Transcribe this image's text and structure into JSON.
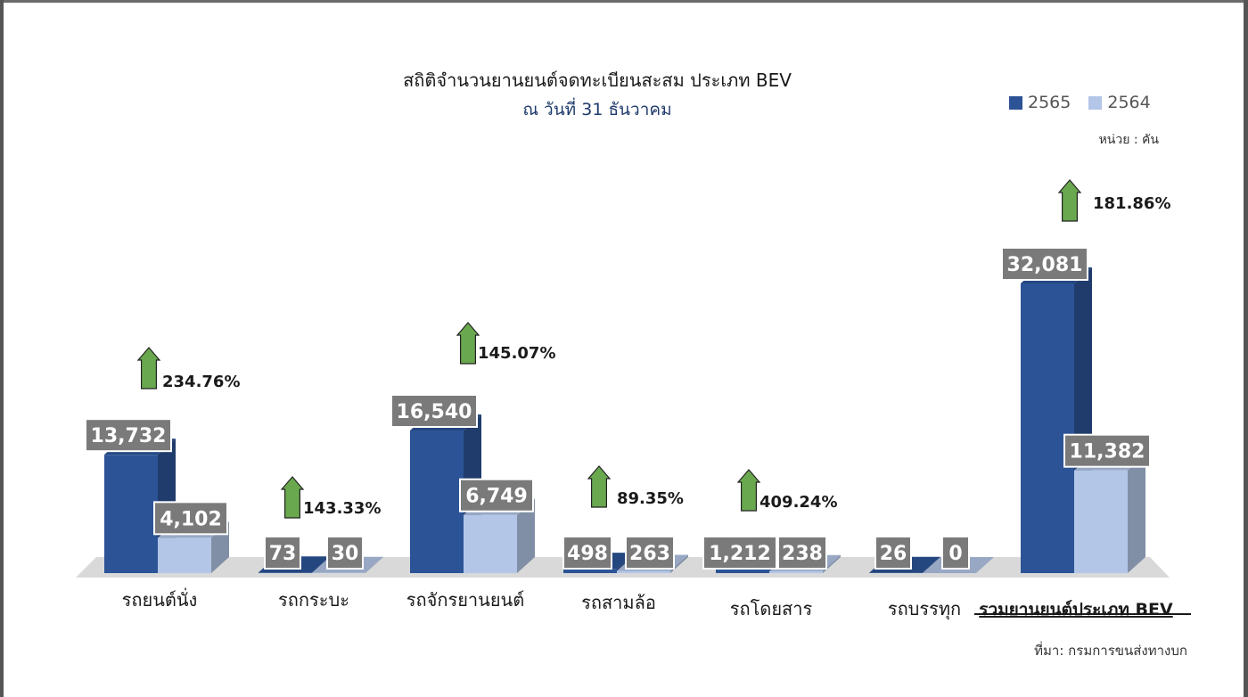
{
  "chart_data": {
    "type": "bar",
    "title": "สถิติจำนวนยานยนต์จดทะเบียนสะสม ประเภท BEV",
    "subtitle": "ณ วันที่ 31 ธันวาคม",
    "unit": "หน่วย : คัน",
    "source": "ที่มา: กรมการขนส่งทางบก",
    "categories": [
      "รถยนต์นั่ง",
      "รถกระบะ",
      "รถจักรยานยนต์",
      "รถสามล้อ",
      "รถโดยสาร",
      "รถบรรทุก",
      "รวมยานยนต์ประเภท BEV"
    ],
    "series": [
      {
        "name": "2565",
        "values": [
          13732,
          73,
          16540,
          498,
          1212,
          26,
          32081
        ],
        "labels": [
          "13,732",
          "73",
          "16,540",
          "498",
          "1,212",
          "26",
          "32,081"
        ]
      },
      {
        "name": "2564",
        "values": [
          4102,
          30,
          6749,
          263,
          238,
          0,
          11382
        ],
        "labels": [
          "4,102",
          "30",
          "6,749",
          "263",
          "238",
          "0",
          "11,382"
        ]
      }
    ],
    "growth": [
      "234.76%",
      "143.33%",
      "145.07%",
      "89.35%",
      "409.24%",
      "",
      "181.86%"
    ],
    "colors": {
      "2565": "#2c5396",
      "2564": "#b3c6e7",
      "arrow": "#6aa84f",
      "label_bg": "#7a7a7a",
      "floor": "#d9d9d9"
    }
  }
}
